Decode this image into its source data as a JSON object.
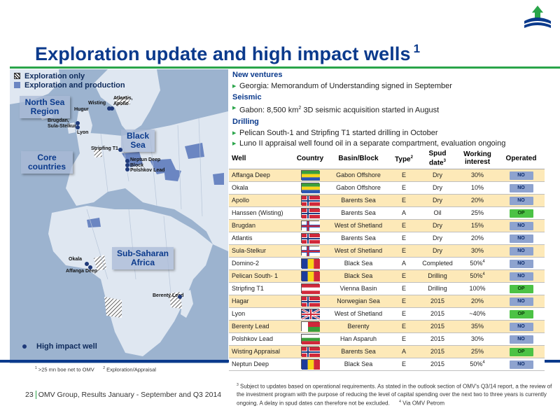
{
  "logo": {
    "name": "omv-logo-icon",
    "colors": {
      "blue": "#0b3a8c",
      "green": "#2aa54a"
    }
  },
  "title": {
    "text": "Exploration update and high impact wells",
    "sup": "1"
  },
  "map": {
    "legend": {
      "exploration_only": "Exploration only",
      "exploration_production": "Exploration and production"
    },
    "regions": {
      "north_sea": "North Sea Region",
      "black_sea": "Black Sea",
      "core": "Core countries",
      "ssa": "Sub-Saharan Africa"
    },
    "wells": {
      "wisting": "Wisting",
      "atlantis_apollo": "Atlantis, Apollo",
      "hugur": "Hugur",
      "brugdan": "Brugdan, Sula-Stelkur",
      "lyon": "Lyon",
      "stripfing": "Stripfing T1",
      "neptun": "Neptun Deep Block",
      "polshkov": "Polshkov Lead",
      "okala": "Okala",
      "affanga": "Affanga Deep",
      "berenty": "Berenty Lead"
    },
    "high_impact": "High impact well"
  },
  "bullets": {
    "new_ventures": {
      "heading": "New ventures",
      "items": [
        "Georgia: Memorandum of Understanding signed in September"
      ]
    },
    "seismic": {
      "heading": "Seismic",
      "item_pre": "Gabon: 8,500 km",
      "item_sup": "2",
      "item_post": " 3D seismic acquisition started in August"
    },
    "drilling": {
      "heading": "Drilling",
      "items": [
        "Pelican South-1 and Stripfing T1 started drilling in October",
        "Luno II appraisal well found oil in a separate compartment, evaluation ongoing"
      ]
    }
  },
  "table": {
    "headers": {
      "well": "Well",
      "country": "Country",
      "basin": "Basin/Block",
      "type": "Type",
      "type_sup": "2",
      "spud_1": "Spud",
      "spud_2": "date",
      "spud_sup": "3",
      "wi_1": "Working",
      "wi_2": "interest",
      "operated": "Operated"
    },
    "rows": [
      {
        "well": "Affanga Deep",
        "flag": "gabon",
        "basin": "Gabon Offshore",
        "type": "E",
        "spud": "Dry",
        "wi": "30%",
        "wi_sup": "",
        "op": "NO"
      },
      {
        "well": "Okala",
        "flag": "gabon",
        "basin": "Gabon Offshore",
        "type": "E",
        "spud": "Dry",
        "wi": "10%",
        "wi_sup": "",
        "op": "NO"
      },
      {
        "well": "Apollo",
        "flag": "norway",
        "basin": "Barents Sea",
        "type": "E",
        "spud": "Dry",
        "wi": "20%",
        "wi_sup": "",
        "op": "NO"
      },
      {
        "well": "Hanssen (Wisting)",
        "flag": "norway",
        "basin": "Barents Sea",
        "type": "A",
        "spud": "Oil",
        "wi": "25%",
        "wi_sup": "",
        "op": "OP"
      },
      {
        "well": "Brugdan",
        "flag": "faroe",
        "basin": "West of Shetland",
        "type": "E",
        "spud": "Dry",
        "wi": "15%",
        "wi_sup": "",
        "op": "NO"
      },
      {
        "well": "Atlantis",
        "flag": "norway",
        "basin": "Barents Sea",
        "type": "E",
        "spud": "Dry",
        "wi": "20%",
        "wi_sup": "",
        "op": "NO"
      },
      {
        "well": "Sula-Stelkur",
        "flag": "faroe",
        "basin": "West of Shetland",
        "type": "E",
        "spud": "Dry",
        "wi": "30%",
        "wi_sup": "",
        "op": "NO"
      },
      {
        "well": "Domino-2",
        "flag": "romania",
        "basin": "Black Sea",
        "type": "A",
        "spud": "Completed",
        "wi": "50%",
        "wi_sup": "4",
        "op": "NO"
      },
      {
        "well": "Pelican South- 1",
        "flag": "romania",
        "basin": "Black Sea",
        "type": "E",
        "spud": "Drilling",
        "wi": "50%",
        "wi_sup": "4",
        "op": "NO"
      },
      {
        "well": "Stripfing T1",
        "flag": "austria",
        "basin": "Vienna Basin",
        "type": "E",
        "spud": "Drilling",
        "wi": "100%",
        "wi_sup": "",
        "op": "OP"
      },
      {
        "well": "Hagar",
        "flag": "norway",
        "basin": "Norwegian Sea",
        "type": "E",
        "spud": "2015",
        "wi": "20%",
        "wi_sup": "",
        "op": "NO"
      },
      {
        "well": "Lyon",
        "flag": "uk",
        "basin": "West of Shetland",
        "type": "E",
        "spud": "2015",
        "wi": "~40%",
        "wi_sup": "",
        "op": "OP"
      },
      {
        "well": "Berenty Lead",
        "flag": "madagascar",
        "basin": "Berenty",
        "type": "E",
        "spud": "2015",
        "wi": "35%",
        "wi_sup": "",
        "op": "NO"
      },
      {
        "well": "Polshkov Lead",
        "flag": "bulgaria",
        "basin": "Han Asparuh",
        "type": "E",
        "spud": "2015",
        "wi": "30%",
        "wi_sup": "",
        "op": "NO"
      },
      {
        "well": "Wisting Appraisal",
        "flag": "norway",
        "basin": "Barents Sea",
        "type": "A",
        "spud": "2015",
        "wi": "25%",
        "wi_sup": "",
        "op": "OP"
      },
      {
        "well": "Neptun Deep",
        "flag": "romania",
        "basin": "Black Sea",
        "type": "E",
        "spud": "2015",
        "wi": "50%",
        "wi_sup": "4",
        "op": "NO"
      }
    ],
    "colors": {
      "row_highlight": "#fde9b8",
      "badge_no": "#8ea3cf",
      "badge_op": "#4cc245"
    }
  },
  "footnotes": {
    "left_1_sup": "1",
    "left_1": " >25 mn boe net to OMV",
    "left_2_sup": "2",
    "left_2": " Exploration/Appraisal",
    "right_sup3": "3",
    "right_text": " Subject to updates based on operational requirements. As stated in the outlook section of OMV's Q3/14 report, a the review of the investment program with the purpose of reducing the level of capital spending over the next two to three years is currently ongoing. A delay in spud dates can therefore not be excluded.",
    "right_sup4": "4",
    "right_text4": " Via OMV Petrom"
  },
  "footer": {
    "page": "23",
    "text": "OMV Group, Results January - September and Q3 2014"
  }
}
